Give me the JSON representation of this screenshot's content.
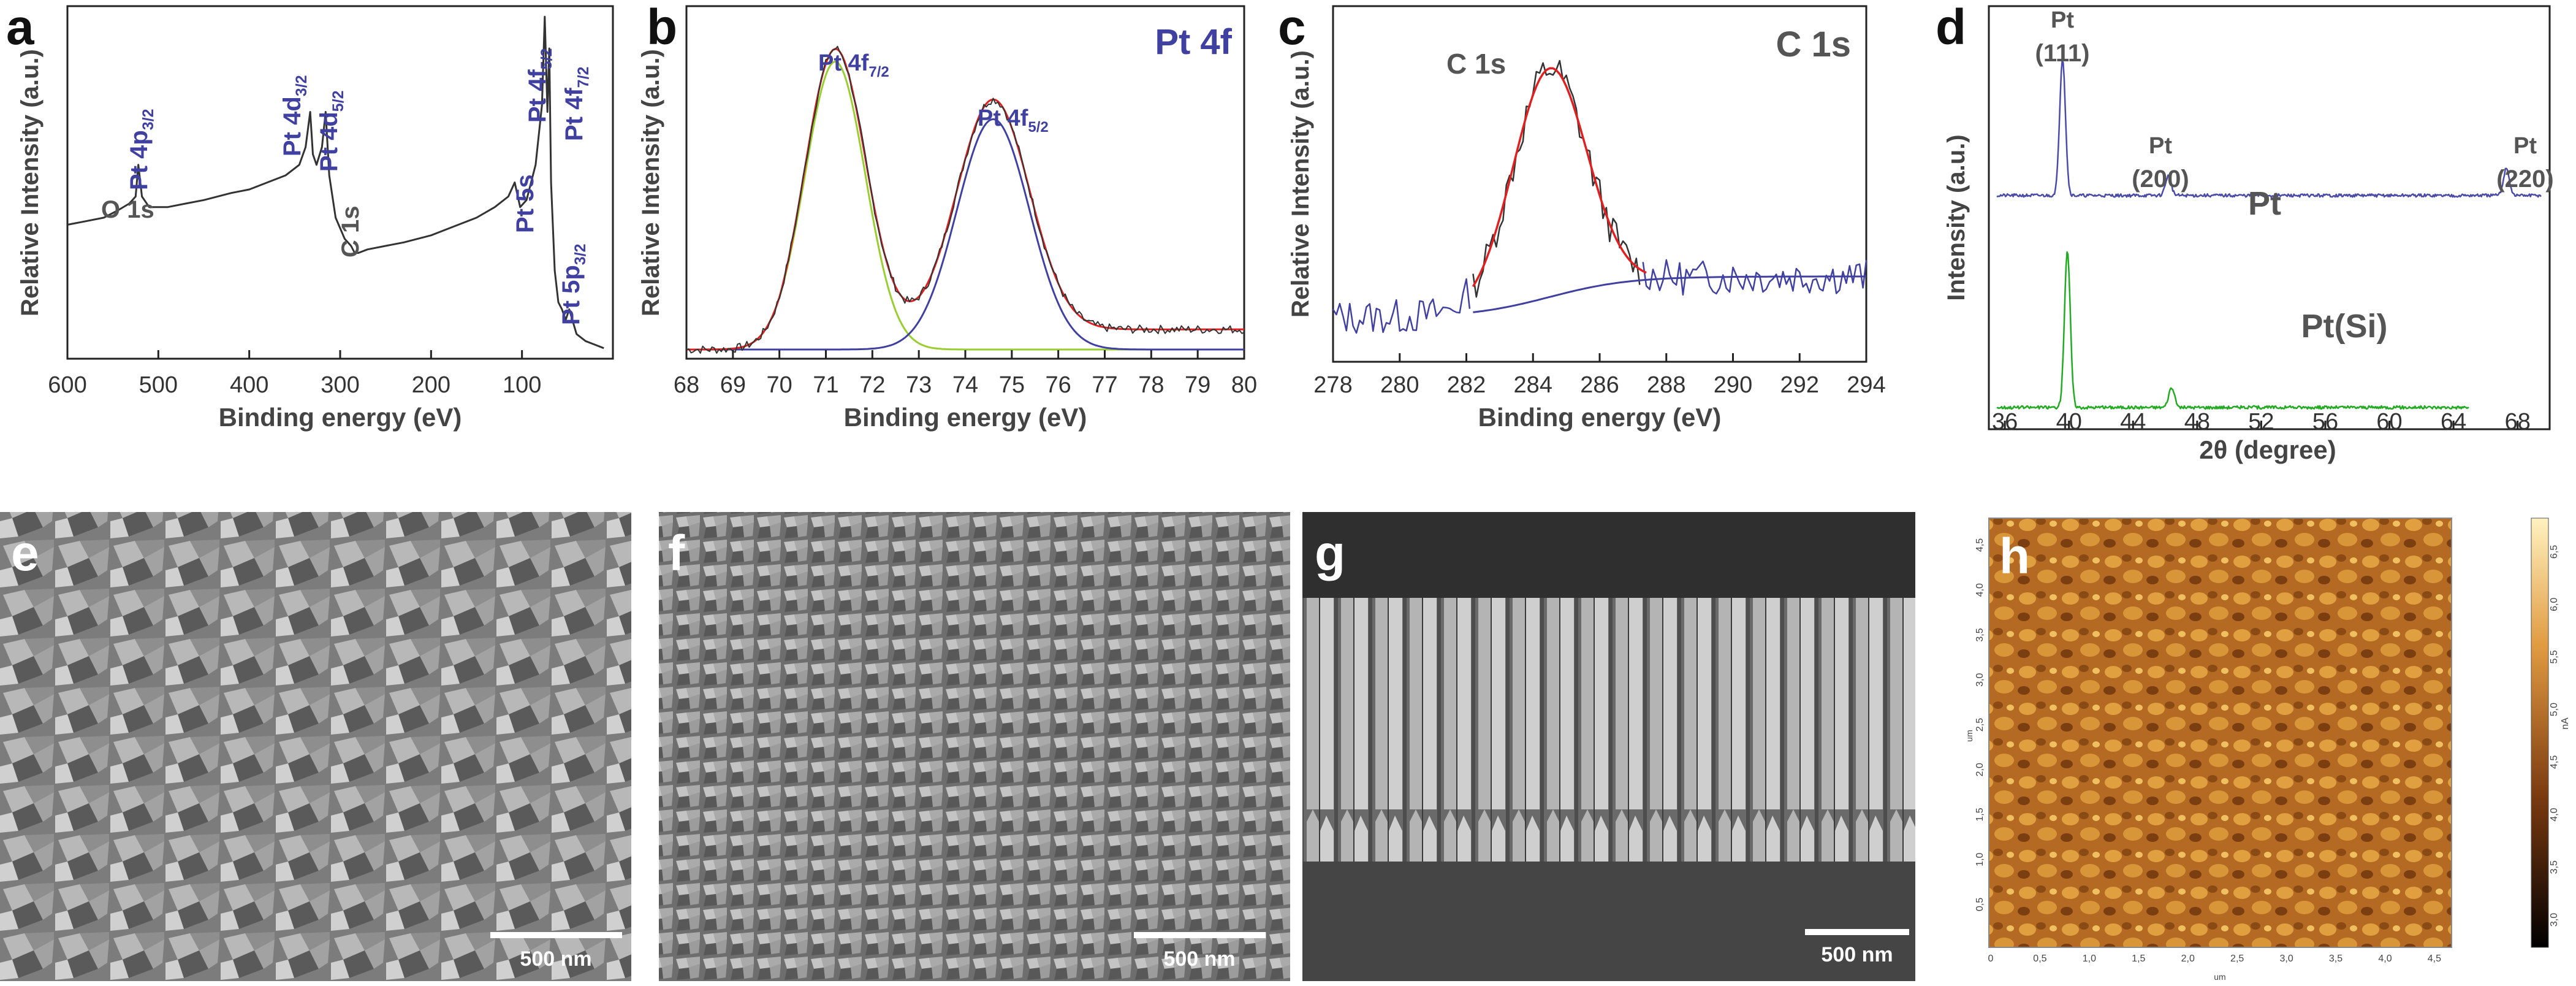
{
  "colors": {
    "survey": "#333333",
    "fit_total": "#e02020",
    "comp_a": "#9acd32",
    "comp_b": "#4040a0",
    "raw_c": "#333333",
    "bg_c": "#4040a0",
    "xrd_pt": "#4a4aa8",
    "xrd_ptsi": "#22aa22",
    "label": "#4040a0"
  },
  "chart_data": [
    {
      "panel": "a",
      "type": "line",
      "xlabel": "Binding energy (eV)",
      "ylabel": "Relative Intensity (a.u.)",
      "xlim": [
        600,
        0
      ],
      "ylim": [
        0,
        1
      ],
      "xticks": [
        "600",
        "500",
        "400",
        "300",
        "200",
        "100"
      ],
      "xtick_values": [
        600,
        500,
        400,
        300,
        200,
        100
      ],
      "x": [
        600,
        580,
        560,
        545,
        532,
        525,
        522,
        518,
        510,
        490,
        470,
        450,
        420,
        400,
        380,
        360,
        345,
        338,
        333,
        330,
        326,
        320,
        316,
        312,
        305,
        295,
        288,
        284,
        280,
        270,
        250,
        230,
        200,
        170,
        150,
        130,
        115,
        108,
        102,
        95,
        85,
        78,
        75,
        72,
        70,
        68,
        64,
        60,
        56,
        52,
        48,
        40,
        30,
        20,
        10
      ],
      "y": [
        0.38,
        0.39,
        0.4,
        0.42,
        0.44,
        0.46,
        0.55,
        0.46,
        0.43,
        0.43,
        0.44,
        0.45,
        0.47,
        0.48,
        0.5,
        0.52,
        0.55,
        0.6,
        0.7,
        0.58,
        0.55,
        0.6,
        0.7,
        0.52,
        0.4,
        0.34,
        0.32,
        0.3,
        0.3,
        0.31,
        0.32,
        0.33,
        0.35,
        0.38,
        0.4,
        0.43,
        0.46,
        0.5,
        0.43,
        0.45,
        0.55,
        0.72,
        0.97,
        0.7,
        0.88,
        0.5,
        0.25,
        0.16,
        0.14,
        0.11,
        0.14,
        0.07,
        0.05,
        0.04,
        0.03
      ],
      "annotations": [
        {
          "text": "O 1s",
          "x": 540
        },
        {
          "text": "Pt 4p3/2",
          "x": 518
        },
        {
          "text": "Pt 4d3/2",
          "x": 333
        },
        {
          "text": "Pt 4d5/2",
          "x": 316
        },
        {
          "text": "C 1s",
          "x": 285
        },
        {
          "text": "Pt 5s",
          "x": 102
        },
        {
          "text": "Pt 4f5/2",
          "x": 75
        },
        {
          "text": "Pt 4f7/2",
          "x": 70
        },
        {
          "text": "Pt 5p3/2",
          "x": 52
        }
      ]
    },
    {
      "panel": "b",
      "type": "line",
      "title": "Pt 4f",
      "xlabel": "Binding energy (eV)",
      "ylabel": "Relative Intensity (a.u.)",
      "xlim": [
        68,
        80
      ],
      "ylim": [
        0,
        1.15
      ],
      "xticks": [
        "68",
        "69",
        "70",
        "71",
        "72",
        "73",
        "74",
        "75",
        "76",
        "77",
        "78",
        "79",
        "80"
      ],
      "xtick_values": [
        68,
        69,
        70,
        71,
        72,
        73,
        74,
        75,
        76,
        77,
        78,
        79,
        80
      ],
      "series": [
        {
          "name": "Pt 4f7/2 component",
          "center": 71.2,
          "sigma": 0.65,
          "amplitude": 1.0,
          "baseline": 0.0
        },
        {
          "name": "Pt 4f5/2 component",
          "center": 74.6,
          "sigma": 0.78,
          "amplitude": 0.8,
          "baseline": 0.0
        }
      ],
      "envelope_tail": 0.07,
      "annotations": [
        {
          "text": "Pt 4f7/2",
          "x": 71.2
        },
        {
          "text": "Pt 4f5/2",
          "x": 74.6
        }
      ]
    },
    {
      "panel": "c",
      "type": "line",
      "title": "C 1s",
      "xlabel": "Binding energy (eV)",
      "ylabel": "Relative Intensity (a.u.)",
      "xlim": [
        278,
        294
      ],
      "ylim": [
        0,
        1.15
      ],
      "xticks": [
        "278",
        "280",
        "282",
        "284",
        "286",
        "288",
        "290",
        "292",
        "294"
      ],
      "xtick_values": [
        278,
        280,
        282,
        284,
        286,
        288,
        290,
        292,
        294
      ],
      "peak": {
        "center": 284.5,
        "sigma": 1.1,
        "amplitude": 0.78
      },
      "background": {
        "start": 0.13,
        "end": 0.27
      },
      "noise": 0.06,
      "annotations": [
        {
          "text": "C 1s",
          "x": 283.2
        }
      ]
    },
    {
      "panel": "d",
      "type": "line",
      "xlabel": "2θ (degree)",
      "ylabel": "Intensity (a.u.)",
      "xlim": [
        35,
        70
      ],
      "xticks": [
        "36",
        "40",
        "44",
        "48",
        "52",
        "56",
        "60",
        "64",
        "68"
      ],
      "xtick_values": [
        36,
        40,
        44,
        48,
        52,
        56,
        60,
        64,
        68
      ],
      "series": [
        {
          "name": "Pt",
          "offset": 0.58,
          "xmax": 69.5,
          "peaks": [
            [
              39.6,
              0.35
            ],
            [
              46.2,
              0.05
            ],
            [
              67.3,
              0.07
            ]
          ]
        },
        {
          "name": "Pt(Si)",
          "offset": 0.04,
          "xmax": 65,
          "peaks": [
            [
              39.9,
              0.4
            ],
            [
              46.4,
              0.05
            ]
          ]
        }
      ],
      "annotations": [
        {
          "text": "Pt",
          "sub": "(111)",
          "x": 39.6
        },
        {
          "text": "Pt",
          "sub": "(200)",
          "x": 46.2
        },
        {
          "text": "Pt",
          "sub": "(220)",
          "x": 67.3
        }
      ]
    }
  ],
  "micrographs": [
    {
      "panel": "e",
      "scale_bar": "500 nm"
    },
    {
      "panel": "f",
      "scale_bar": "500 nm"
    },
    {
      "panel": "g",
      "scale_bar": "500 nm"
    },
    {
      "panel": "h",
      "x_ticks": [
        "0",
        "0,5",
        "1,0",
        "1,5",
        "2,0",
        "2,5",
        "3,0",
        "3,5",
        "4,0",
        "4,5"
      ],
      "x_unit": "um",
      "y_ticks": [
        "0,5",
        "1,0",
        "1,5",
        "2,0",
        "2,5",
        "3,0",
        "3,5",
        "4,0",
        "4,5"
      ],
      "y_unit": "um",
      "colorbar_ticks": [
        "3,0",
        "3,5",
        "4,0",
        "4,5",
        "5,0",
        "5,5",
        "6,0",
        "6,5"
      ],
      "colorbar_unit": "nA"
    }
  ]
}
